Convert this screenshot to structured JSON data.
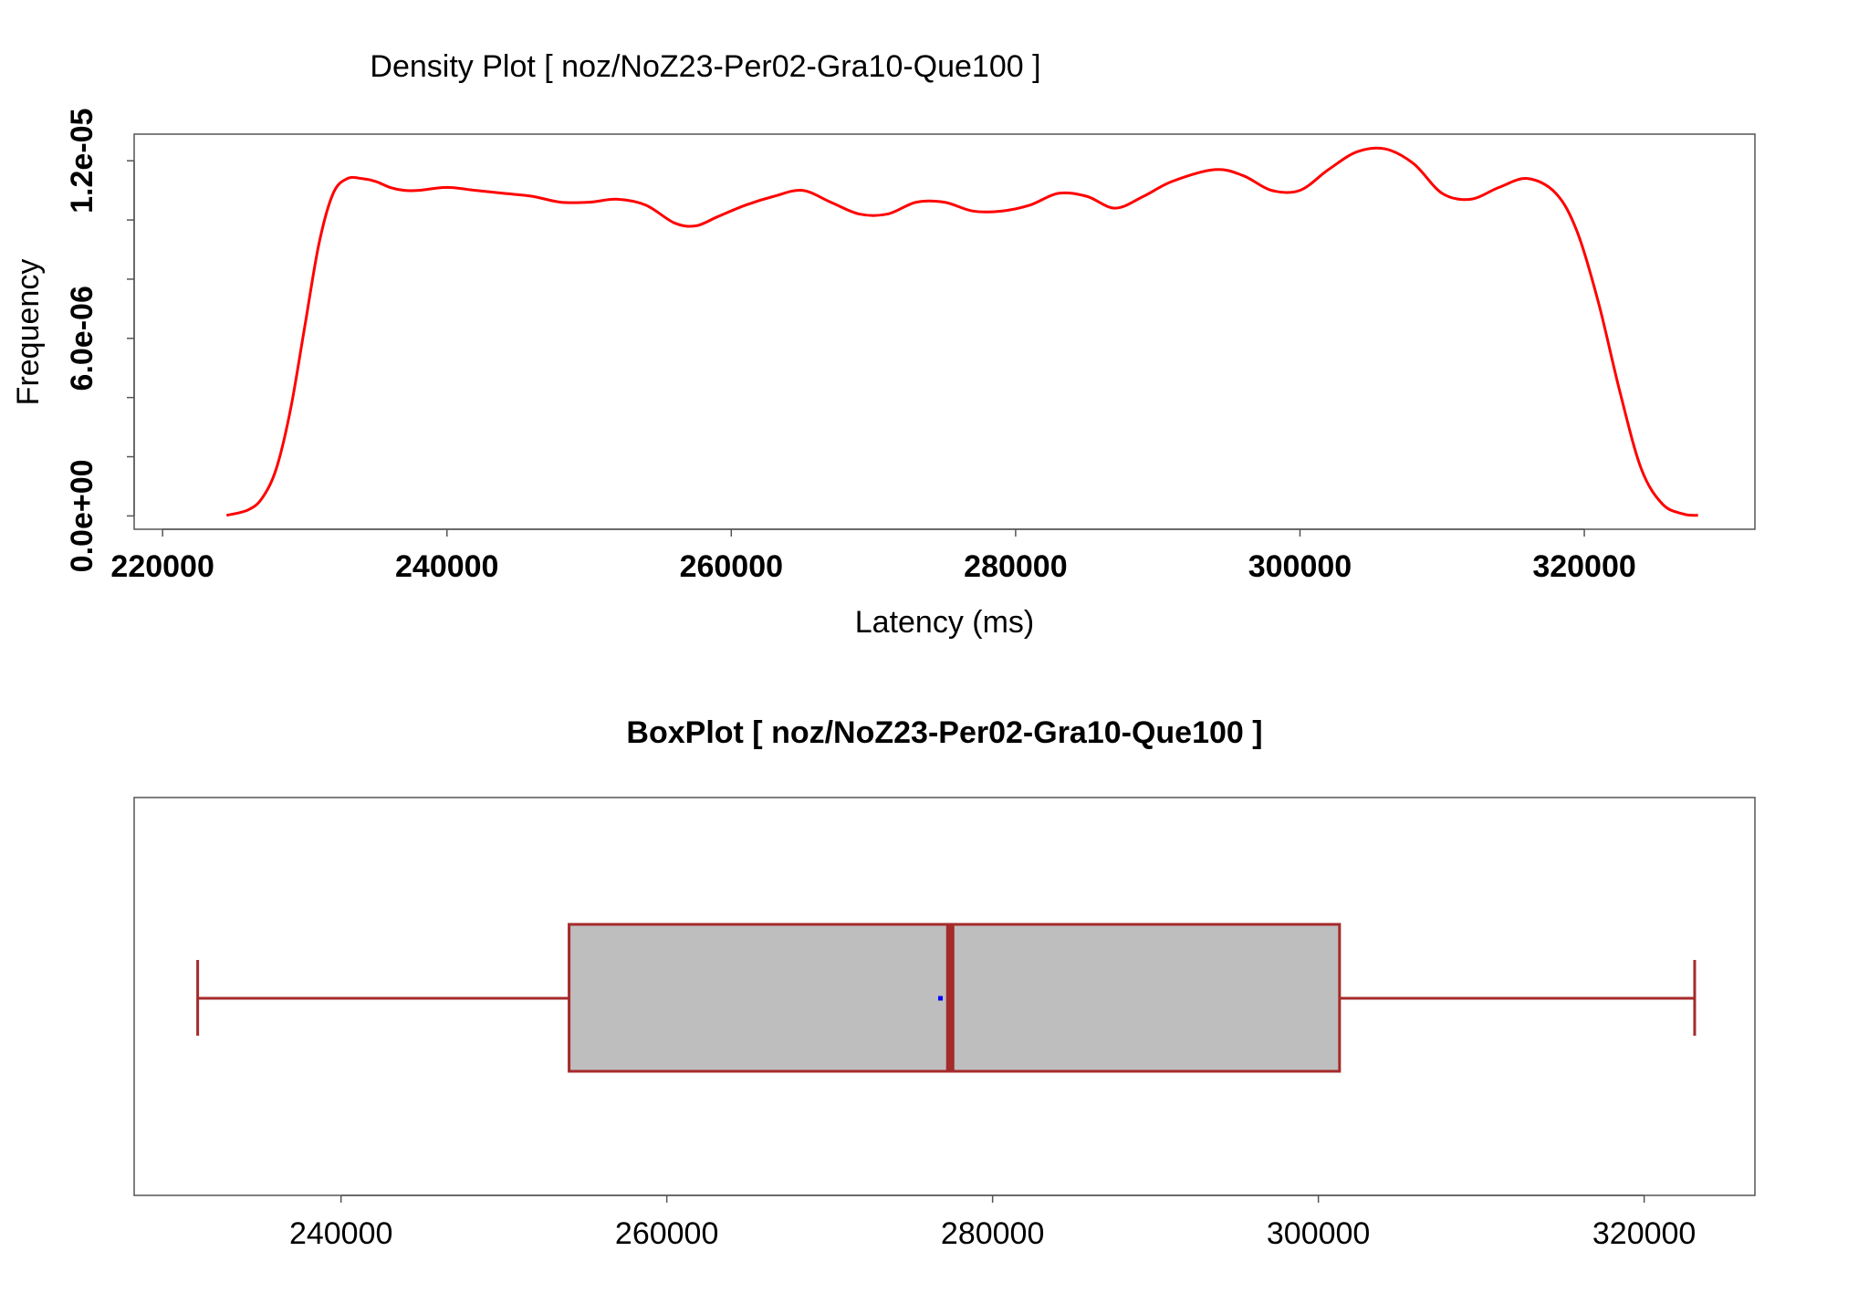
{
  "chart_data": [
    {
      "type": "line",
      "title": "Density Plot [ noz/NoZ23-Per02-Gra10-Que100 ]",
      "xlabel": "Latency (ms)",
      "ylabel": "Frequency",
      "xlim": [
        218000,
        332000
      ],
      "ylim": [
        -4.5e-07,
        1.29e-05
      ],
      "x_ticks": [
        220000,
        240000,
        260000,
        280000,
        300000,
        320000
      ],
      "x_tick_labels": [
        "220000",
        "240000",
        "260000",
        "280000",
        "300000",
        "320000"
      ],
      "y_ticks": [
        0,
        2e-06,
        4e-06,
        6e-06,
        8e-06,
        1e-05,
        1.2e-05
      ],
      "y_tick_labels": [
        "0.0e+00",
        "6.0e-06",
        "1.2e-05"
      ],
      "y_label_values": [
        0,
        6e-06,
        1.2e-05
      ],
      "grid": false,
      "color": "#ff0000",
      "series": [
        {
          "x": [
            224500,
            226000,
            227000,
            228000,
            229000,
            230000,
            231000,
            232000,
            233000,
            234000,
            235000,
            236000,
            237000,
            238000,
            240000,
            242000,
            244000,
            246000,
            248000,
            250000,
            252000,
            254000,
            256000,
            257500,
            259000,
            261000,
            263000,
            265000,
            267000,
            269000,
            271000,
            273000,
            275000,
            277000,
            279000,
            281000,
            283000,
            285000,
            287000,
            289000,
            291000,
            294000,
            296000,
            298000,
            300000,
            302000,
            304000,
            306000,
            308000,
            310000,
            312000,
            314000,
            316000,
            318000,
            319500,
            321000,
            322500,
            324000,
            325500,
            327000,
            328000
          ],
          "y": [
            2e-08,
            2e-07,
            6e-07,
            1.6e-06,
            3.6e-06,
            6.4e-06,
            9.2e-06,
            1.09e-05,
            1.14e-05,
            1.14e-05,
            1.13e-05,
            1.11e-05,
            1.1e-05,
            1.1e-05,
            1.11e-05,
            1.1e-05,
            1.09e-05,
            1.08e-05,
            1.06e-05,
            1.06e-05,
            1.07e-05,
            1.05e-05,
            9.9e-06,
            9.8e-06,
            1.01e-05,
            1.05e-05,
            1.08e-05,
            1.1e-05,
            1.06e-05,
            1.02e-05,
            1.02e-05,
            1.06e-05,
            1.06e-05,
            1.03e-05,
            1.03e-05,
            1.05e-05,
            1.09e-05,
            1.08e-05,
            1.04e-05,
            1.08e-05,
            1.13e-05,
            1.17e-05,
            1.15e-05,
            1.1e-05,
            1.1e-05,
            1.17e-05,
            1.23e-05,
            1.24e-05,
            1.19e-05,
            1.09e-05,
            1.07e-05,
            1.11e-05,
            1.14e-05,
            1.09e-05,
            9.6e-06,
            7.2e-06,
            4.2e-06,
            1.6e-06,
            4e-07,
            6e-08,
            2e-08
          ]
        }
      ]
    },
    {
      "type": "boxplot",
      "title": "BoxPlot [ noz/NoZ23-Per02-Gra10-Que100 ]",
      "xlim": [
        227300,
        326800
      ],
      "x_ticks": [
        240000,
        260000,
        280000,
        300000,
        320000
      ],
      "x_tick_labels": [
        "240000",
        "260000",
        "280000",
        "300000",
        "320000"
      ],
      "whisker_low": 231200,
      "q1": 254000,
      "median": 277400,
      "q3": 301300,
      "whisker_high": 323100,
      "mean": 276800,
      "box_color": "#bebebe",
      "line_color": "#a52a2a",
      "mean_color": "#0000ff"
    }
  ]
}
